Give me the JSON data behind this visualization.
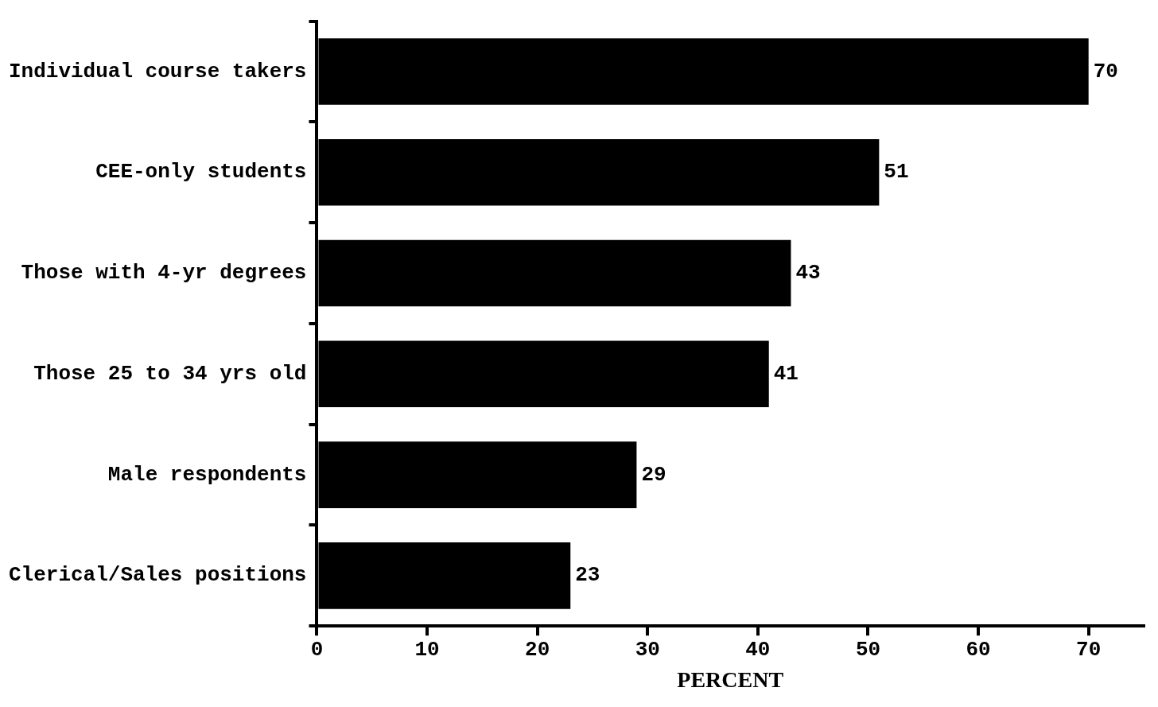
{
  "chart_data": {
    "type": "bar",
    "orientation": "horizontal",
    "categories": [
      "Individual course takers",
      "CEE-only students",
      "Those with 4-yr degrees",
      "Those 25 to 34 yrs old",
      "Male respondents",
      "Clerical/Sales positions"
    ],
    "values": [
      70,
      51,
      43,
      41,
      29,
      23
    ],
    "color": "#000000",
    "xlabel": "PERCENT",
    "xlim": [
      0,
      75
    ],
    "xticks": [
      0,
      10,
      20,
      30,
      40,
      50,
      60,
      70
    ],
    "data_labels": true,
    "grid": false,
    "legend": false
  }
}
